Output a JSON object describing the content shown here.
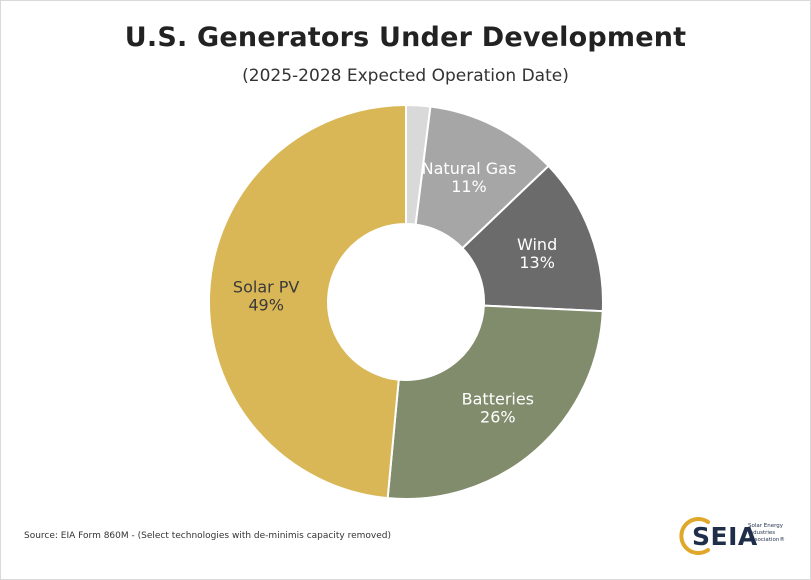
{
  "title": "U.S. Generators Under Development",
  "subtitle": "(2025-2028 Expected Operation Date)",
  "source": "Source: EIA Form 860M - (Select technologies with de-minimis capacity removed)",
  "logo": {
    "name": "SEIA",
    "tagline": "Solar Energy Industries Association®"
  },
  "chart_data": {
    "type": "pie",
    "donut": true,
    "start_angle_deg": 0,
    "direction": "clockwise",
    "slices": [
      {
        "label": "",
        "value": 2,
        "display": "",
        "color": "#d9d9d9"
      },
      {
        "label": "Natural Gas",
        "value": 11,
        "display": "11%",
        "color": "#a6a6a6",
        "label_color": "#ffffff"
      },
      {
        "label": "Wind",
        "value": 13,
        "display": "13%",
        "color": "#6b6b6b",
        "label_color": "#ffffff"
      },
      {
        "label": "Batteries",
        "value": 26,
        "display": "26%",
        "color": "#818c6c",
        "label_color": "#ffffff"
      },
      {
        "label": "Solar PV",
        "value": 49,
        "display": "49%",
        "color": "#d9b756",
        "label_color": "#3a3a3a"
      }
    ],
    "legend": "none"
  }
}
